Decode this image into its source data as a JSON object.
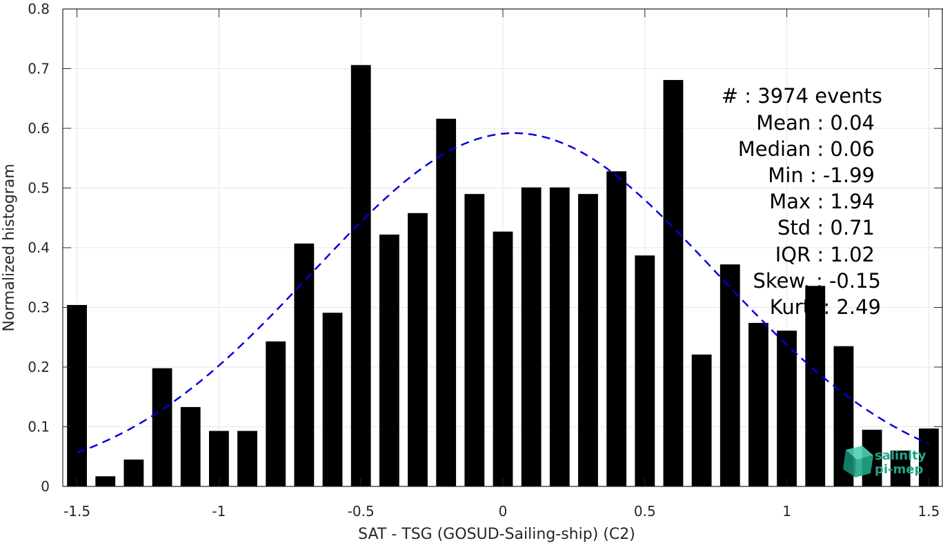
{
  "chart_data": {
    "type": "bar",
    "xlabel": "SAT - TSG (GOSUD-Sailing-ship) (C2)",
    "ylabel": "Normalized histogram",
    "xlim": [
      -1.55,
      1.55
    ],
    "ylim": [
      0,
      0.8
    ],
    "xticks": [
      -1.5,
      -1,
      -0.5,
      0,
      0.5,
      1,
      1.5
    ],
    "xtick_labels": [
      "-1.5",
      "-1",
      "-0.5",
      "0",
      "0.5",
      "1",
      "1.5"
    ],
    "yticks": [
      0,
      0.1,
      0.2,
      0.3,
      0.4,
      0.5,
      0.6,
      0.7,
      0.8
    ],
    "ytick_labels": [
      "0",
      "0.1",
      "0.2",
      "0.3",
      "0.4",
      "0.5",
      "0.6",
      "0.7",
      "0.8"
    ],
    "grid": true,
    "bar_width": 0.07,
    "bar_color": "#000000",
    "x": [
      -1.5,
      -1.4,
      -1.3,
      -1.2,
      -1.1,
      -1.0,
      -0.9,
      -0.8,
      -0.7,
      -0.6,
      -0.5,
      -0.4,
      -0.3,
      -0.2,
      -0.1,
      0.0,
      0.1,
      0.2,
      0.3,
      0.4,
      0.5,
      0.6,
      0.7,
      0.8,
      0.9,
      1.0,
      1.1,
      1.2,
      1.3,
      1.4,
      1.5
    ],
    "values": [
      0.304,
      0.017,
      0.045,
      0.198,
      0.133,
      0.093,
      0.093,
      0.243,
      0.407,
      0.291,
      0.706,
      0.422,
      0.458,
      0.616,
      0.49,
      0.427,
      0.501,
      0.501,
      0.49,
      0.528,
      0.387,
      0.681,
      0.221,
      0.372,
      0.274,
      0.261,
      0.336,
      0.235,
      0.095,
      0.06,
      0.097
    ],
    "fit_curve": {
      "style": "dashed",
      "color": "#0000e0",
      "mean": 0.04,
      "std": 0.71,
      "peak": 0.592,
      "x_range": [
        -1.5,
        1.5
      ]
    }
  },
  "stats": {
    "lines": [
      "#  : 3974 events",
      "Mean : 0.04",
      "Median : 0.06",
      "Min : -1.99",
      "Max : 1.94",
      "Std : 0.71",
      "IQR : 1.02",
      "Skew. : -0.15",
      "Kurt. : 2.49"
    ]
  },
  "logo": {
    "line1": "salinity",
    "line2": "pi-mep",
    "color": "#1fa88a"
  }
}
